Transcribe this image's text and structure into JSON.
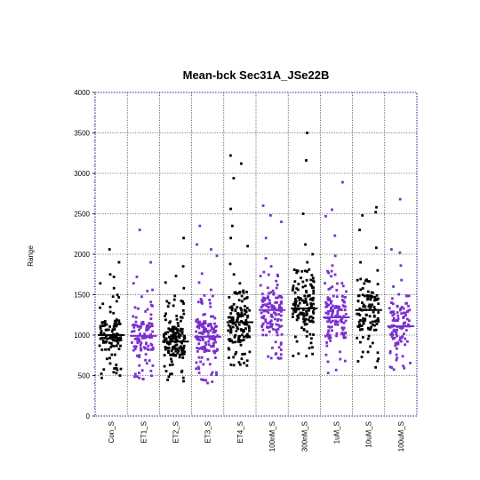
{
  "chart_data": {
    "type": "scatter",
    "title": "Mean-bck Sec31A_JSe22B",
    "xlabel": "",
    "ylabel": "Range",
    "ylim": [
      0,
      4000
    ],
    "yticks": [
      0,
      500,
      1000,
      1500,
      2000,
      2500,
      3000,
      3500,
      4000
    ],
    "grid": true,
    "categories": [
      "Con_S",
      "ET1_S",
      "ET2_S",
      "ET3_S",
      "ET4_S",
      "100nM_S",
      "300nM_S",
      "1uM_S",
      "10uM_S",
      "100uM_S"
    ],
    "colors": {
      "black": "#000000",
      "purple": "#7a2fd0",
      "frame": "#1c1ca8"
    },
    "series": [
      {
        "category": "Con_S",
        "color": "black",
        "mean": 1000,
        "n": 110,
        "min": 460,
        "q1": 820,
        "q3": 1180,
        "max": 1520,
        "outliers": [
          1720,
          1750,
          1900,
          2060,
          1640,
          1580
        ]
      },
      {
        "category": "ET1_S",
        "color": "purple",
        "mean": 990,
        "n": 110,
        "min": 450,
        "q1": 810,
        "q3": 1170,
        "max": 1560,
        "outliers": [
          1900,
          2300,
          1720,
          1640
        ]
      },
      {
        "category": "ET2_S",
        "color": "black",
        "mean": 920,
        "n": 150,
        "min": 430,
        "q1": 740,
        "q3": 1110,
        "max": 1500,
        "outliers": [
          1580,
          1650,
          1730,
          1850,
          2200
        ]
      },
      {
        "category": "ET3_S",
        "color": "purple",
        "mean": 980,
        "n": 150,
        "min": 390,
        "q1": 790,
        "q3": 1170,
        "max": 1500,
        "outliers": [
          1650,
          1760,
          1980,
          2060,
          2120,
          2350,
          1560
        ]
      },
      {
        "category": "ET4_S",
        "color": "black",
        "mean": 1160,
        "n": 140,
        "min": 620,
        "q1": 930,
        "q3": 1360,
        "max": 1560,
        "outliers": [
          1750,
          1880,
          2100,
          2200,
          2350,
          2560,
          2940,
          3120,
          3220,
          1640
        ]
      },
      {
        "category": "100nM_S",
        "color": "purple",
        "mean": 1310,
        "n": 130,
        "min": 700,
        "q1": 1100,
        "q3": 1480,
        "max": 1800,
        "outliers": [
          1850,
          1950,
          2200,
          2400,
          2480,
          2600
        ]
      },
      {
        "category": "300nM_S",
        "color": "black",
        "mean": 1330,
        "n": 130,
        "min": 720,
        "q1": 1130,
        "q3": 1500,
        "max": 1820,
        "outliers": [
          1900,
          2000,
          2120,
          2500,
          3160,
          3500
        ]
      },
      {
        "category": "1uM_S",
        "color": "purple",
        "mean": 1220,
        "n": 130,
        "min": 530,
        "q1": 960,
        "q3": 1480,
        "max": 1820,
        "outliers": [
          1860,
          1980,
          2230,
          2470,
          2550,
          2890
        ]
      },
      {
        "category": "10uM_S",
        "color": "black",
        "mean": 1310,
        "n": 110,
        "min": 560,
        "q1": 1050,
        "q3": 1500,
        "max": 1700,
        "outliers": [
          1800,
          1900,
          2080,
          2300,
          2480,
          2520,
          2580
        ]
      },
      {
        "category": "100uM_S",
        "color": "purple",
        "mean": 1110,
        "n": 100,
        "min": 570,
        "q1": 870,
        "q3": 1320,
        "max": 1520,
        "outliers": [
          1600,
          1680,
          1860,
          2020,
          2060,
          2680
        ]
      }
    ]
  }
}
